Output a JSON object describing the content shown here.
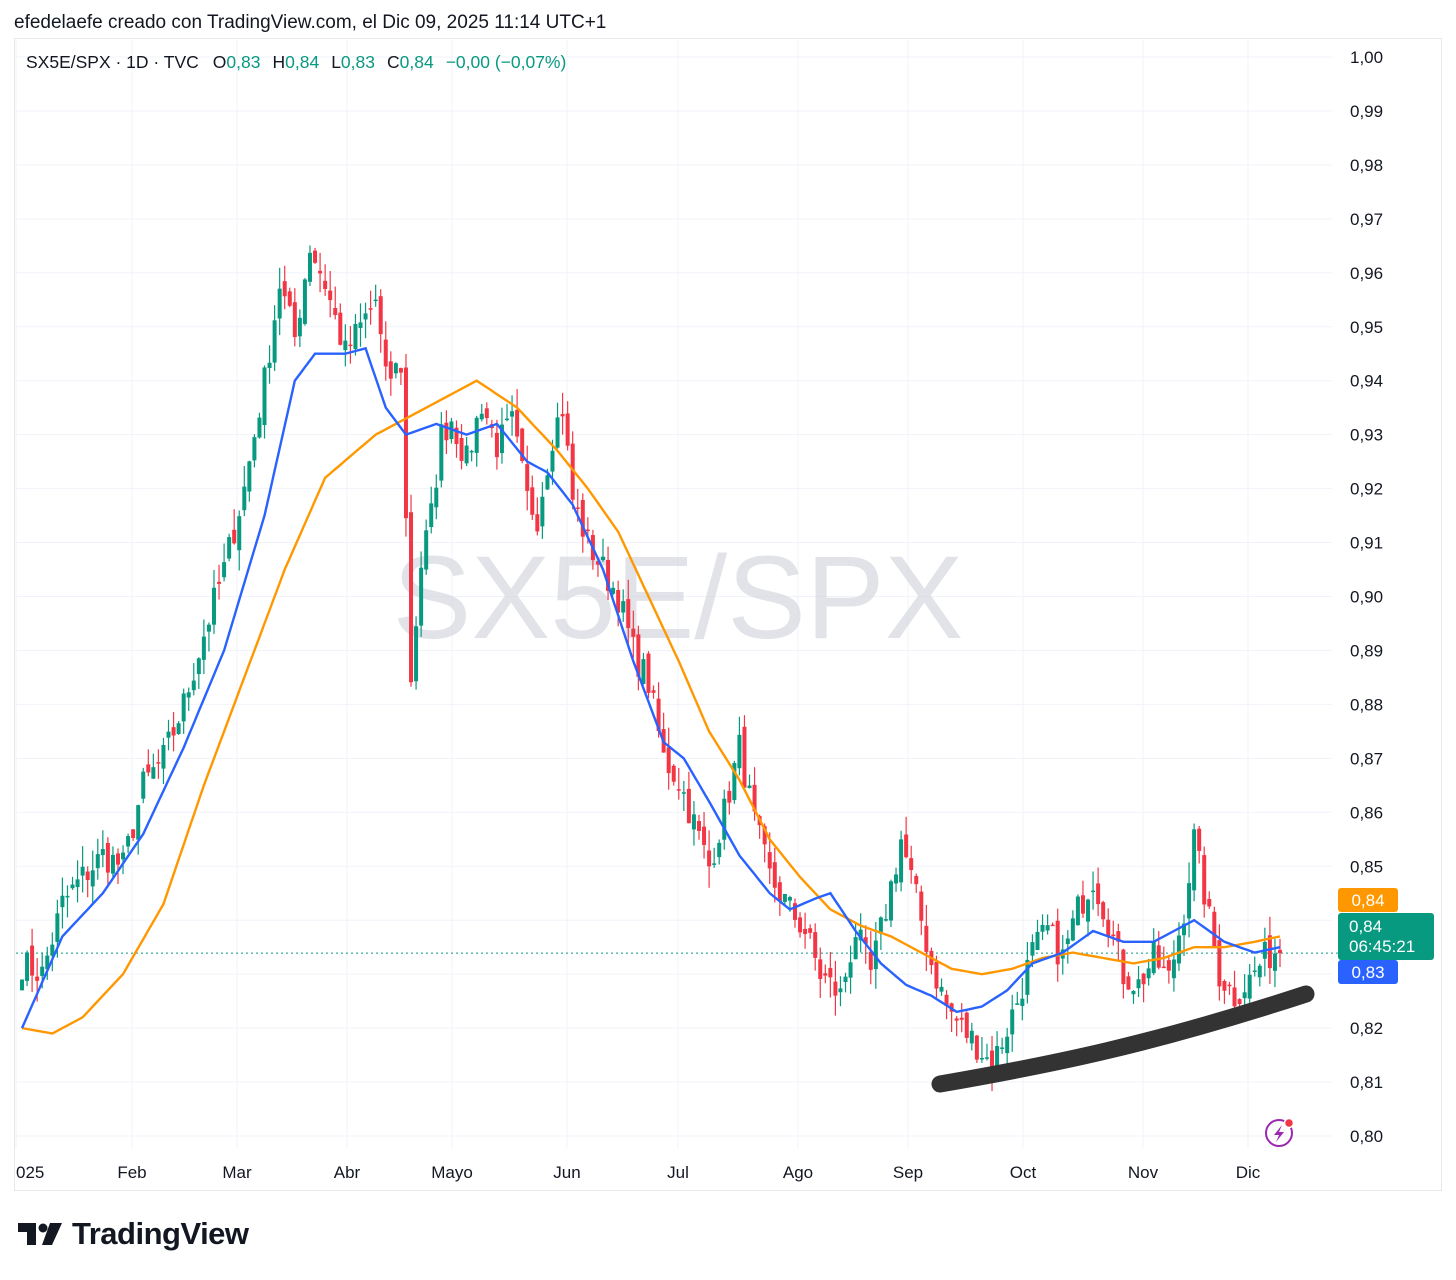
{
  "caption": "efedelaefe creado con TradingView.com, el Dic 09, 2025 11:14 UTC+1",
  "legend": {
    "symbol": "SX5E/SPX · 1D · TVC",
    "open_key": "O",
    "open": "0,83",
    "high_key": "H",
    "high": "0,84",
    "low_key": "L",
    "low": "0,83",
    "close_key": "C",
    "close": "0,84",
    "change": "−0,00 (−0,07%)"
  },
  "watermark": "SX5E/SPX",
  "brand": "TradingView",
  "colors": {
    "up": "#089981",
    "down": "#f23645",
    "ma_fast": "#2962ff",
    "ma_slow": "#ff9800",
    "trendline": "#333333",
    "grid": "#f0f3fa",
    "price_line": "#089981"
  },
  "badges": {
    "ma_slow": "0,84",
    "price": "0,84",
    "countdown": "06:45:21",
    "ma_fast": "0,83"
  },
  "chart_data": {
    "type": "candlestick",
    "title": "",
    "y_ticks": [
      "1,00",
      "0,99",
      "0,98",
      "0,97",
      "0,96",
      "0,95",
      "0,94",
      "0,93",
      "0,92",
      "0,91",
      "0,90",
      "0,89",
      "0,88",
      "0,87",
      "0,86",
      "0,85",
      "0,84",
      "0,83",
      "0,82",
      "0,81",
      "0,80"
    ],
    "x_ticks": [
      "025",
      "Feb",
      "Mar",
      "Abr",
      "Mayo",
      "Jun",
      "Jul",
      "Ago",
      "Sep",
      "Oct",
      "Nov",
      "Dic"
    ],
    "ylim": [
      0.8,
      1.0
    ],
    "grid": true,
    "series": [
      {
        "name": "SX5E/SPX · 1D · TVC",
        "type": "candlestick",
        "anchors_close": [
          [
            0,
            0.832
          ],
          [
            4,
            0.83
          ],
          [
            8,
            0.843
          ],
          [
            12,
            0.848
          ],
          [
            16,
            0.852
          ],
          [
            20,
            0.85
          ],
          [
            24,
            0.865
          ],
          [
            28,
            0.87
          ],
          [
            32,
            0.88
          ],
          [
            36,
            0.893
          ],
          [
            40,
            0.905
          ],
          [
            44,
            0.92
          ],
          [
            48,
            0.94
          ],
          [
            51,
            0.958
          ],
          [
            54,
            0.948
          ],
          [
            57,
            0.965
          ],
          [
            60,
            0.958
          ],
          [
            64,
            0.945
          ],
          [
            67,
            0.95
          ],
          [
            70,
            0.955
          ],
          [
            72,
            0.94
          ],
          [
            75,
            0.943
          ],
          [
            77,
            0.885
          ],
          [
            79,
            0.906
          ],
          [
            81,
            0.915
          ],
          [
            83,
            0.93
          ],
          [
            85,
            0.933
          ],
          [
            88,
            0.925
          ],
          [
            91,
            0.936
          ],
          [
            94,
            0.928
          ],
          [
            97,
            0.932
          ],
          [
            100,
            0.918
          ],
          [
            102,
            0.915
          ],
          [
            105,
            0.93
          ],
          [
            107,
            0.935
          ],
          [
            109,
            0.918
          ],
          [
            112,
            0.91
          ],
          [
            115,
            0.905
          ],
          [
            118,
            0.9
          ],
          [
            121,
            0.89
          ],
          [
            124,
            0.884
          ],
          [
            127,
            0.87
          ],
          [
            130,
            0.866
          ],
          [
            133,
            0.858
          ],
          [
            136,
            0.85
          ],
          [
            139,
            0.86
          ],
          [
            142,
            0.872
          ],
          [
            145,
            0.858
          ],
          [
            148,
            0.848
          ],
          [
            152,
            0.842
          ],
          [
            155,
            0.838
          ],
          [
            158,
            0.83
          ],
          [
            162,
            0.826
          ],
          [
            165,
            0.838
          ],
          [
            168,
            0.83
          ],
          [
            171,
            0.842
          ],
          [
            174,
            0.855
          ],
          [
            177,
            0.844
          ],
          [
            180,
            0.832
          ],
          [
            183,
            0.824
          ],
          [
            186,
            0.82
          ],
          [
            189,
            0.817
          ],
          [
            192,
            0.813
          ],
          [
            195,
            0.82
          ],
          [
            197,
            0.825
          ],
          [
            200,
            0.834
          ],
          [
            203,
            0.838
          ],
          [
            206,
            0.833
          ],
          [
            209,
            0.842
          ],
          [
            212,
            0.848
          ],
          [
            215,
            0.84
          ],
          [
            218,
            0.83
          ],
          [
            221,
            0.828
          ],
          [
            224,
            0.833
          ],
          [
            227,
            0.829
          ],
          [
            230,
            0.842
          ],
          [
            232,
            0.855
          ],
          [
            234,
            0.845
          ],
          [
            237,
            0.83
          ],
          [
            240,
            0.826
          ],
          [
            243,
            0.829
          ],
          [
            246,
            0.833
          ],
          [
            249,
            0.835
          ]
        ]
      },
      {
        "name": "MA fast",
        "type": "line",
        "anchors": [
          [
            0,
            0.82
          ],
          [
            8,
            0.837
          ],
          [
            16,
            0.845
          ],
          [
            24,
            0.856
          ],
          [
            32,
            0.872
          ],
          [
            40,
            0.89
          ],
          [
            48,
            0.915
          ],
          [
            54,
            0.94
          ],
          [
            58,
            0.945
          ],
          [
            64,
            0.945
          ],
          [
            68,
            0.946
          ],
          [
            72,
            0.935
          ],
          [
            76,
            0.93
          ],
          [
            82,
            0.932
          ],
          [
            88,
            0.93
          ],
          [
            94,
            0.932
          ],
          [
            100,
            0.925
          ],
          [
            104,
            0.923
          ],
          [
            109,
            0.917
          ],
          [
            115,
            0.905
          ],
          [
            121,
            0.888
          ],
          [
            127,
            0.873
          ],
          [
            131,
            0.87
          ],
          [
            136,
            0.862
          ],
          [
            142,
            0.852
          ],
          [
            148,
            0.845
          ],
          [
            152,
            0.842
          ],
          [
            157,
            0.844
          ],
          [
            160,
            0.845
          ],
          [
            165,
            0.838
          ],
          [
            170,
            0.832
          ],
          [
            175,
            0.828
          ],
          [
            180,
            0.826
          ],
          [
            185,
            0.823
          ],
          [
            190,
            0.824
          ],
          [
            195,
            0.827
          ],
          [
            200,
            0.832
          ],
          [
            206,
            0.834
          ],
          [
            212,
            0.838
          ],
          [
            218,
            0.836
          ],
          [
            224,
            0.836
          ],
          [
            228,
            0.838
          ],
          [
            232,
            0.84
          ],
          [
            238,
            0.836
          ],
          [
            244,
            0.834
          ],
          [
            249,
            0.835
          ]
        ]
      },
      {
        "name": "MA slow",
        "type": "line",
        "anchors": [
          [
            0,
            0.82
          ],
          [
            6,
            0.819
          ],
          [
            12,
            0.822
          ],
          [
            20,
            0.83
          ],
          [
            28,
            0.843
          ],
          [
            36,
            0.865
          ],
          [
            44,
            0.885
          ],
          [
            52,
            0.905
          ],
          [
            60,
            0.922
          ],
          [
            70,
            0.93
          ],
          [
            80,
            0.935
          ],
          [
            90,
            0.94
          ],
          [
            98,
            0.935
          ],
          [
            106,
            0.927
          ],
          [
            112,
            0.92
          ],
          [
            118,
            0.912
          ],
          [
            124,
            0.9
          ],
          [
            130,
            0.888
          ],
          [
            136,
            0.875
          ],
          [
            142,
            0.866
          ],
          [
            148,
            0.855
          ],
          [
            154,
            0.848
          ],
          [
            160,
            0.842
          ],
          [
            166,
            0.839
          ],
          [
            172,
            0.837
          ],
          [
            178,
            0.834
          ],
          [
            184,
            0.831
          ],
          [
            190,
            0.83
          ],
          [
            196,
            0.831
          ],
          [
            202,
            0.833
          ],
          [
            208,
            0.834
          ],
          [
            214,
            0.833
          ],
          [
            220,
            0.832
          ],
          [
            226,
            0.833
          ],
          [
            232,
            0.835
          ],
          [
            238,
            0.835
          ],
          [
            244,
            0.836
          ],
          [
            249,
            0.837
          ]
        ]
      }
    ]
  }
}
